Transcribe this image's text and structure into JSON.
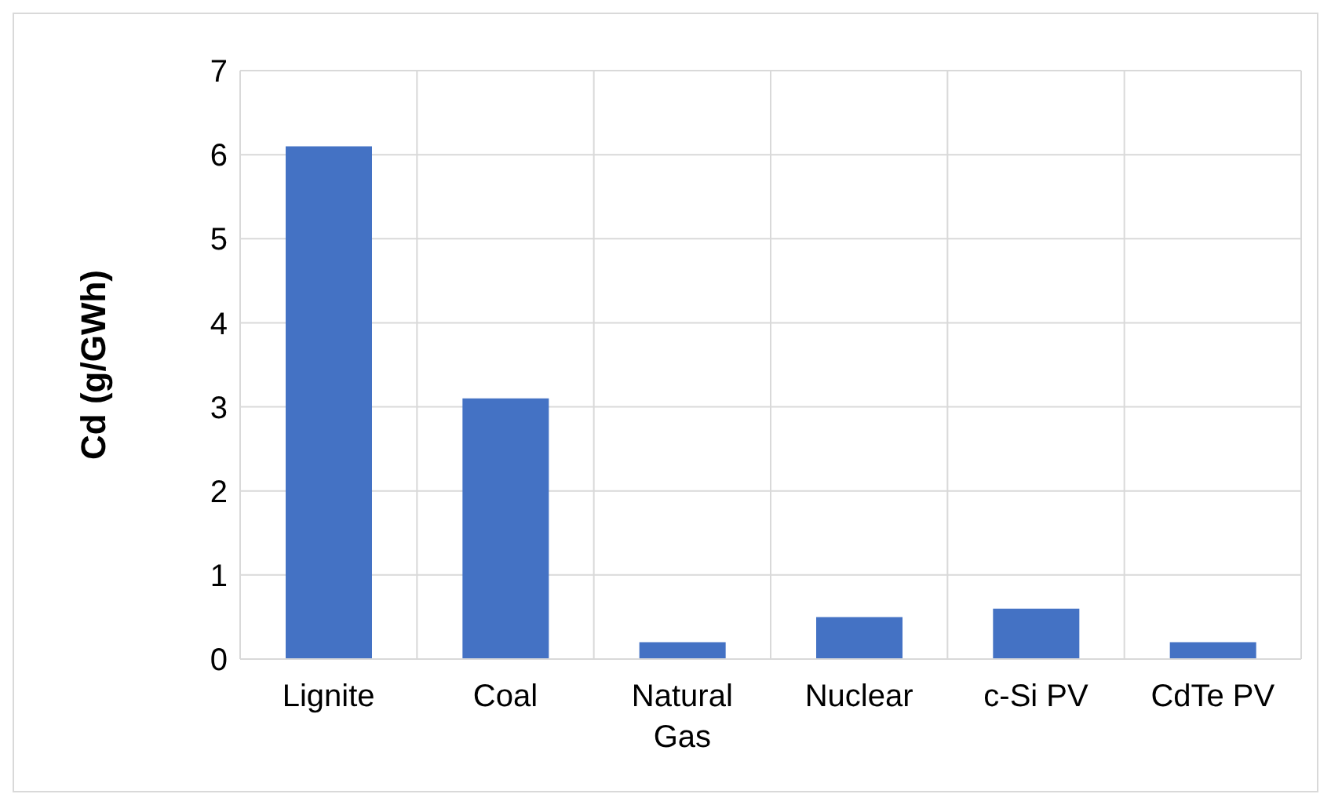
{
  "chart_data": {
    "type": "bar",
    "ylabel": "Cd (g/GWh)",
    "categories": [
      "Lignite",
      "Coal",
      "Natural Gas",
      "Nuclear",
      "c-Si PV",
      "CdTe PV"
    ],
    "values": [
      6.1,
      3.1,
      0.2,
      0.5,
      0.6,
      0.2
    ],
    "color": "#4472c4",
    "ylim": [
      0,
      7
    ],
    "yticks": [
      0,
      1,
      2,
      3,
      4,
      5,
      6,
      7
    ],
    "grid": true
  }
}
